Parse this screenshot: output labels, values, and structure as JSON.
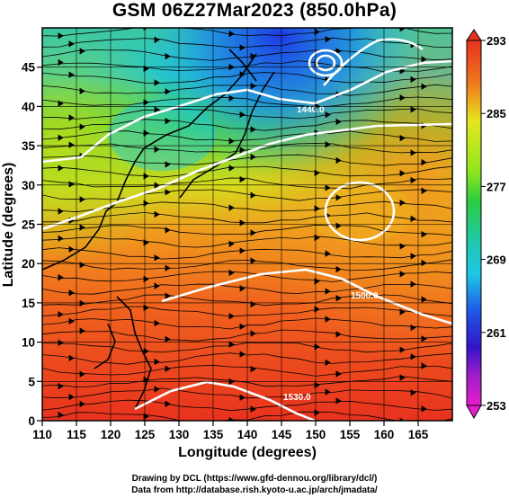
{
  "title": "GSM 06Z27Mar2023 (850.0hPa)",
  "xlabel": "Longitude (degrees)",
  "ylabel": "Latitude  (degrees)",
  "x_ticks": [
    "110",
    "115",
    "120",
    "125",
    "130",
    "135",
    "140",
    "145",
    "150",
    "155",
    "160",
    "165"
  ],
  "y_ticks": [
    "0",
    "5",
    "10",
    "15",
    "20",
    "25",
    "30",
    "35",
    "40",
    "45"
  ],
  "colorbar_labels": [
    "293",
    "285",
    "277",
    "269",
    "261",
    "253"
  ],
  "contour_labels": [
    "1440.0",
    "1500.0",
    "1530.0"
  ],
  "credit_line1": "Drawing by DCL (https://www.gfd-dennou.org/library/dcl/)",
  "credit_line2": "Data from http://database.rish.kyoto-u.ac.jp/arch/jmadata/",
  "colors": {
    "hot": "#e8321e",
    "warm": "#f07a1e",
    "yellow": "#e6e61e",
    "green": "#2ecc40",
    "cyan": "#1ec8e6",
    "blue": "#1e5ae6",
    "purple": "#a01ec8",
    "magenta": "#e61ecc"
  },
  "chart_data": {
    "type": "heatmap",
    "x_range": [
      110,
      170
    ],
    "y_range": [
      0,
      50
    ],
    "colorbar_range": [
      253,
      293
    ],
    "quantity": "temperature with streamlines and height contours"
  }
}
